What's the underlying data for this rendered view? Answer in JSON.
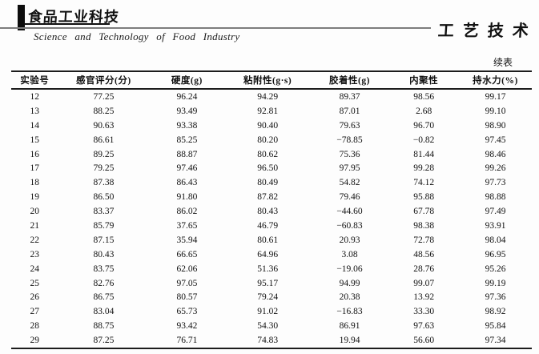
{
  "header": {
    "journal_logo_cn": "食品工业科技",
    "journal_name_en": "Science  and  Technology  of  Food  Industry",
    "section_title": "工艺技术"
  },
  "table": {
    "continued_label": "续表",
    "columns": [
      "实验号",
      "感官评分(分)",
      "硬度(g)",
      "粘附性(g·s)",
      "胶着性(g)",
      "内聚性",
      "持水力(%)"
    ],
    "rows": [
      [
        "12",
        "77.25",
        "96.24",
        "94.29",
        "89.37",
        "98.56",
        "99.17"
      ],
      [
        "13",
        "88.25",
        "93.49",
        "92.81",
        "87.01",
        "2.68",
        "99.10"
      ],
      [
        "14",
        "90.63",
        "93.38",
        "90.40",
        "79.63",
        "96.70",
        "98.90"
      ],
      [
        "15",
        "86.61",
        "85.25",
        "80.20",
        "−78.85",
        "−0.82",
        "97.45"
      ],
      [
        "16",
        "89.25",
        "88.87",
        "80.62",
        "75.36",
        "81.44",
        "98.46"
      ],
      [
        "17",
        "79.25",
        "97.46",
        "96.50",
        "97.95",
        "99.28",
        "99.26"
      ],
      [
        "18",
        "87.38",
        "86.43",
        "80.49",
        "54.82",
        "74.12",
        "97.73"
      ],
      [
        "19",
        "86.50",
        "91.80",
        "87.82",
        "79.46",
        "95.88",
        "98.88"
      ],
      [
        "20",
        "83.37",
        "86.02",
        "80.43",
        "−44.60",
        "67.78",
        "97.49"
      ],
      [
        "21",
        "85.79",
        "37.65",
        "46.79",
        "−60.83",
        "98.38",
        "93.91"
      ],
      [
        "22",
        "87.15",
        "35.94",
        "80.61",
        "20.93",
        "72.78",
        "98.04"
      ],
      [
        "23",
        "80.43",
        "66.65",
        "64.96",
        "3.08",
        "48.56",
        "96.95"
      ],
      [
        "24",
        "83.75",
        "62.06",
        "51.36",
        "−19.06",
        "28.76",
        "95.26"
      ],
      [
        "25",
        "82.76",
        "97.05",
        "95.17",
        "94.99",
        "99.07",
        "99.19"
      ],
      [
        "26",
        "86.75",
        "80.57",
        "79.24",
        "20.38",
        "13.92",
        "97.36"
      ],
      [
        "27",
        "83.04",
        "65.73",
        "91.02",
        "−16.83",
        "33.30",
        "98.92"
      ],
      [
        "28",
        "88.75",
        "93.42",
        "54.30",
        "86.91",
        "97.63",
        "95.84"
      ],
      [
        "29",
        "87.25",
        "76.71",
        "74.83",
        "19.94",
        "56.60",
        "97.34"
      ]
    ]
  }
}
